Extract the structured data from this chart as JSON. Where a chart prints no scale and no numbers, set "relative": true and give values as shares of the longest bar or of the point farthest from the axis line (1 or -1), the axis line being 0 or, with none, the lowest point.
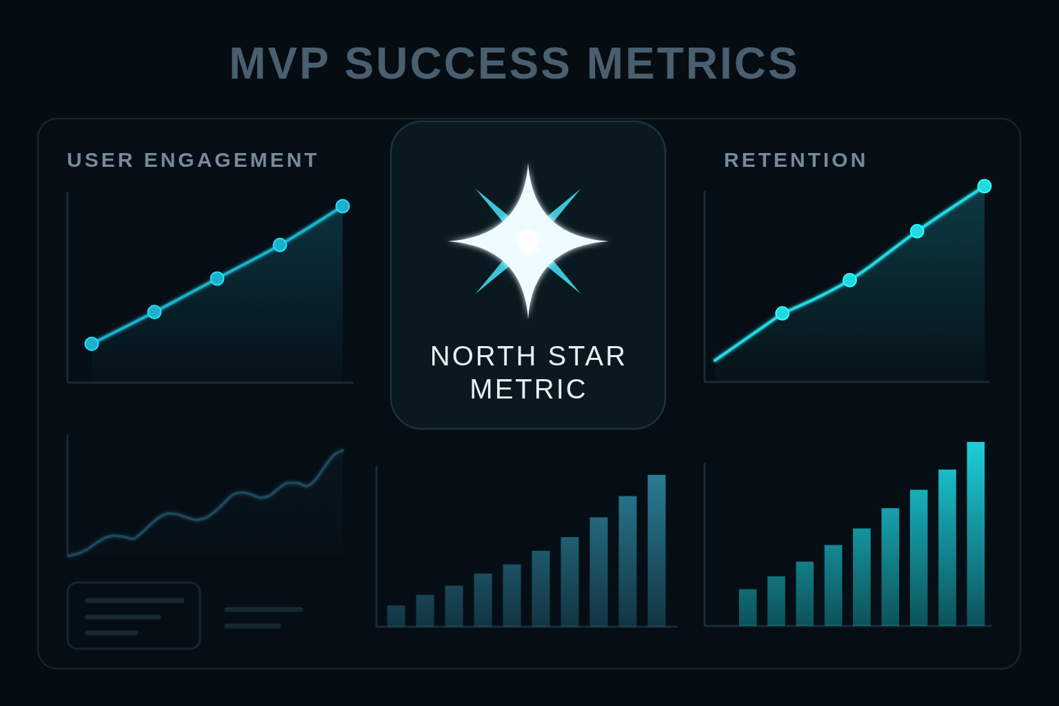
{
  "chart_data": [
    {
      "type": "other",
      "title": "MVP SUCCESS METRICS"
    },
    {
      "type": "area",
      "title": "USER ENGAGEMENT",
      "categories": [
        null,
        null,
        null,
        null,
        null
      ],
      "relative": true,
      "marker": "circle",
      "values": [
        0.22,
        0.4,
        0.59,
        0.78,
        1
      ],
      "color": "#1cb0cb"
    },
    {
      "type": "other",
      "title": "NORTH STAR METRIC"
    },
    {
      "type": "area",
      "title": "RETENTION",
      "categories": [
        null,
        null,
        null,
        null,
        null
      ],
      "relative": true,
      "series": [
        {
          "type": "area",
          "color": "#22d8e3",
          "values": [
            0.11,
            0.35,
            null,
            null,
            null
          ]
        },
        {
          "type": "area",
          "marker": "circle",
          "color": "#22d8e3",
          "values": [
            null,
            0.35,
            0.52,
            0.77,
            1
          ]
        }
      ]
    },
    {
      "type": "area",
      "categories": [
        null,
        null,
        null,
        null,
        null,
        null,
        null,
        null,
        null,
        null,
        null,
        null,
        null,
        null,
        null,
        null,
        null,
        null,
        null,
        null,
        null,
        null,
        null,
        null,
        null,
        null,
        null,
        null,
        null,
        null,
        null
      ],
      "relative": true,
      "values": [
        0,
        0.02,
        0.06,
        0.12,
        0.17,
        0.19,
        0.18,
        0.16,
        0.22,
        0.3,
        0.37,
        0.4,
        0.39,
        0.36,
        0.34,
        0.36,
        0.42,
        0.5,
        0.58,
        0.6,
        0.58,
        0.55,
        0.57,
        0.64,
        0.69,
        0.69,
        0.66,
        0.72,
        0.84,
        0.95,
        1
      ],
      "color": "#1f4a5c"
    },
    {
      "type": "bar",
      "categories": [
        null,
        null,
        null,
        null,
        null,
        null,
        null,
        null,
        null,
        null
      ],
      "relative": true,
      "values": [
        0.14,
        0.21,
        0.27,
        0.35,
        0.41,
        0.5,
        0.59,
        0.72,
        0.86,
        1
      ],
      "color": "#2a7c95"
    },
    {
      "type": "bar",
      "categories": [
        null,
        null,
        null,
        null,
        null,
        null,
        null,
        null,
        null
      ],
      "relative": true,
      "values": [
        0.2,
        0.27,
        0.35,
        0.44,
        0.53,
        0.64,
        0.74,
        0.85,
        1
      ],
      "color": "#1ccfda"
    }
  ]
}
